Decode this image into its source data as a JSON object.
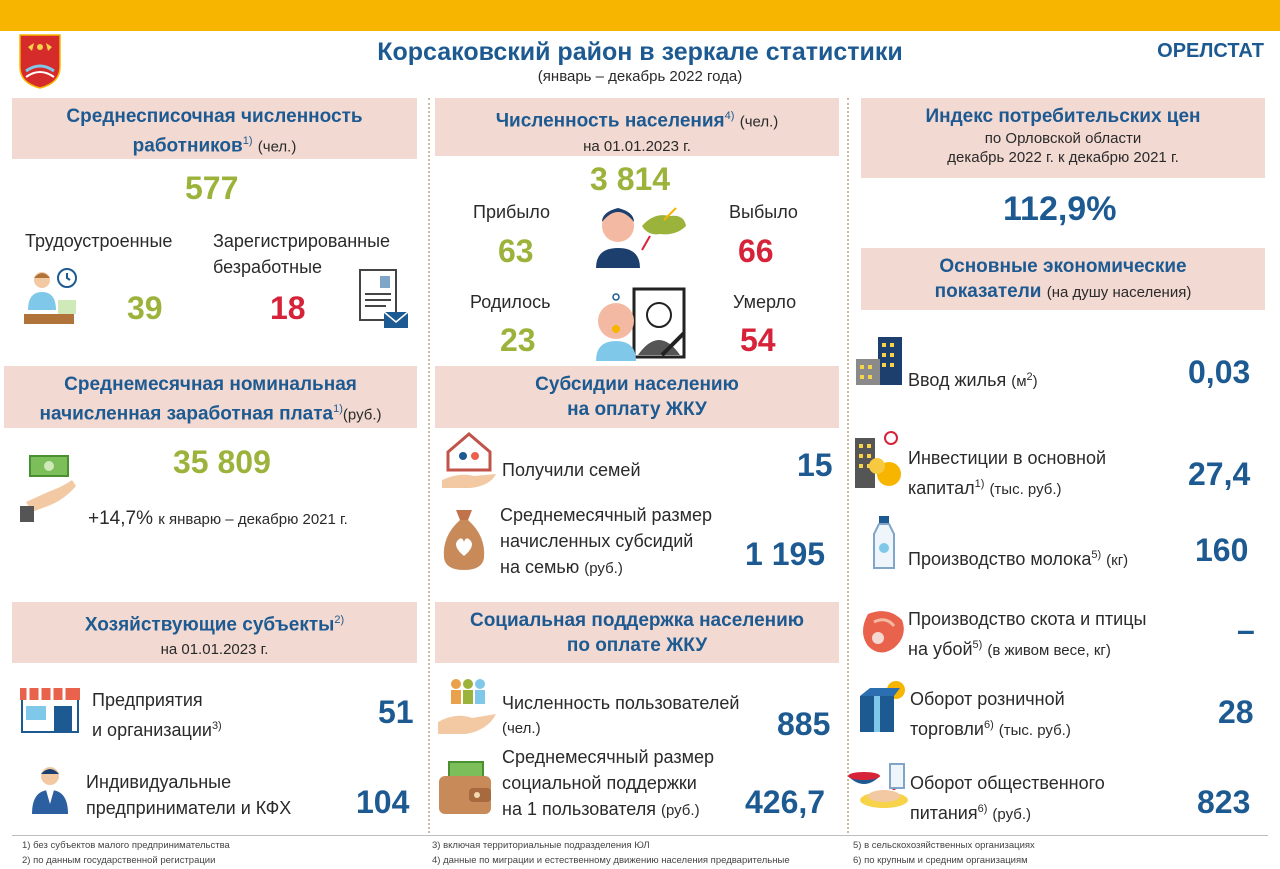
{
  "header": {
    "title": "Корсаковский район в зеркале статистики",
    "subtitle": "(январь – декабрь 2022 года)",
    "agency": "ОРЕЛСТАТ"
  },
  "employees": {
    "title": "Среднесписочная численность",
    "title2": "работников",
    "sup": "1)",
    "unit": "(чел.)",
    "total": "577",
    "employed_label": "Трудоустроенные",
    "employed_value": "39",
    "unemployed_label1": "Зарегистрированные",
    "unemployed_label2": "безработные",
    "unemployed_value": "18"
  },
  "population": {
    "title": "Численность населения",
    "sup": "4)",
    "unit": "(чел.)",
    "date": "на 01.01.2023 г.",
    "total": "3 814",
    "arrived_label": "Прибыло",
    "arrived_value": "63",
    "left_label": "Выбыло",
    "left_value": "66",
    "born_label": "Родилось",
    "born_value": "23",
    "died_label": "Умерло",
    "died_value": "54"
  },
  "cpi": {
    "title": "Индекс потребительских цен",
    "line2": "по Орловской области",
    "line3": "декабрь 2022 г. к декабрю 2021 г.",
    "value": "112,9%"
  },
  "salary": {
    "title1": "Среднемесячная номинальная",
    "title2": "начисленная заработная плата",
    "sup": "1)",
    "unit": "(руб.)",
    "value": "35 809",
    "change": "+14,7%",
    "change_note": "к январю – декабрю 2021 г."
  },
  "subsidies": {
    "title1": "Субсидии населению",
    "title2": "на оплату ЖКУ",
    "families_label": "Получили семей",
    "families_value": "15",
    "avg_label1": "Среднемесячный размер",
    "avg_label2": "начисленных субсидий",
    "avg_label3": "на семью",
    "avg_unit": "(руб.)",
    "avg_value": "1 195"
  },
  "economy": {
    "title1": "Основные экономические",
    "title2": "показатели",
    "title_note": "(на душу населения)",
    "items": [
      {
        "label": "Ввод жилья",
        "unit": "(м",
        "unit_sup": "2",
        "unit_end": ")",
        "value": "0,03"
      },
      {
        "label1": "Инвестиции в основной",
        "label2": "капитал",
        "sup": "1)",
        "unit": "(тыс. руб.)",
        "value": "27,4"
      },
      {
        "label": "Производство молока",
        "sup": "5)",
        "unit": "(кг)",
        "value": "160"
      },
      {
        "label1": "Производство скота и птицы",
        "label2": "на убой",
        "sup": "5)",
        "unit": "(в живом весе, кг)",
        "value": "–"
      },
      {
        "label1": "Оборот розничной",
        "label2": "торговли",
        "sup": "6)",
        "unit": "(тыс. руб.)",
        "value": "28"
      },
      {
        "label1": "Оборот общественного",
        "label2": "питания",
        "sup": "6)",
        "unit": "(руб.)",
        "value": "823"
      }
    ]
  },
  "entities": {
    "title": "Хозяйствующие субъекты",
    "sup": "2)",
    "date": "на 01.01.2023 г.",
    "org_label1": "Предприятия",
    "org_label2": "и организации",
    "org_sup": "3)",
    "org_value": "51",
    "ip_label1": "Индивидуальные",
    "ip_label2": "предприниматели и КФХ",
    "ip_value": "104"
  },
  "social": {
    "title1": "Социальная поддержка населению",
    "title2": "по оплате ЖКУ",
    "users_label": "Численность пользователей",
    "users_unit": "(чел.)",
    "users_value": "885",
    "avg_label1": "Среднемесячный размер",
    "avg_label2": "социальной поддержки",
    "avg_label3": "на 1 пользователя",
    "avg_unit": "(руб.)",
    "avg_value": "426,7"
  },
  "footnotes": {
    "f1": "1) без субъектов малого предпринимательства",
    "f2": "2) по данным государственной регистрации",
    "f3": "3) включая территориальные подразделения ЮЛ",
    "f4": "4) данные по миграции и естественному движению населения предварительные",
    "f5": "5) в сельскохозяйственных организациях",
    "f6": "6) по крупным и средним организациям"
  },
  "colors": {
    "accent_yellow": "#f7b500",
    "header_bg": "#f2d9d2",
    "title_blue": "#1d5a91",
    "value_green": "#9bb33b",
    "value_red": "#d6233a"
  }
}
